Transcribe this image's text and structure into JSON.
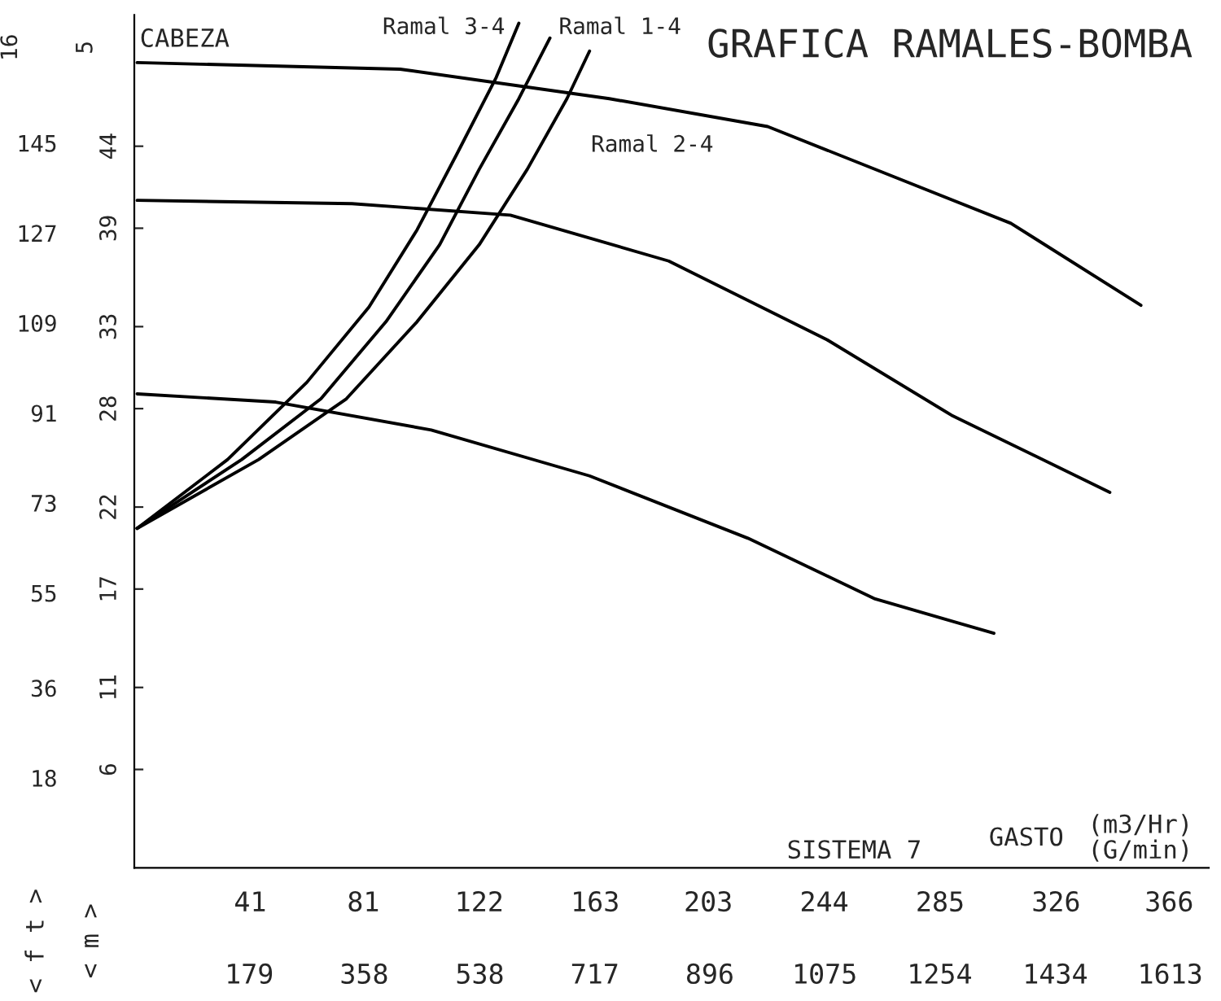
{
  "chart_data": {
    "type": "line",
    "title": "GRAFICA RAMALES-BOMBA",
    "xlabel": "(m3/Hr)",
    "x2label": "(G/min)",
    "ylabel": "< m >",
    "y2label": "< f t >",
    "annotations": [
      "CABEZA",
      "GASTO",
      "SISTEMA 7",
      "Ramal 3-4",
      "Ramal 1-4",
      "Ramal 2-4",
      "5",
      "16"
    ],
    "series": [
      {
        "color": "#000000",
        "x": [
          1,
          94,
          168,
          224,
          310,
          356
        ],
        "values": [
          49.1,
          48.7,
          46.9,
          45.2,
          39.3,
          34.3
        ]
      },
      {
        "color": "#000000",
        "x": [
          1,
          77,
          133,
          189,
          245,
          289,
          345
        ],
        "values": [
          40.7,
          40.5,
          39.8,
          37.0,
          32.2,
          27.6,
          22.9
        ]
      },
      {
        "color": "#000000",
        "x": [
          1,
          50,
          105,
          161,
          217,
          262,
          304
        ],
        "values": [
          28.9,
          28.4,
          26.7,
          23.9,
          20.1,
          16.4,
          14.3
        ]
      },
      {
        "color": "#000000",
        "x": [
          1,
          33,
          61,
          83,
          100,
          114,
          128,
          136
        ],
        "values": [
          20.7,
          24.9,
          29.6,
          34.2,
          38.9,
          43.5,
          48.2,
          51.5
        ]
      },
      {
        "color": "#000000",
        "x": [
          1,
          38,
          66,
          89,
          108,
          122,
          136,
          147
        ],
        "values": [
          20.7,
          24.9,
          28.6,
          33.3,
          38.0,
          42.6,
          46.9,
          50.6
        ]
      },
      {
        "color": "#000000",
        "x": [
          1,
          44,
          75,
          100,
          122,
          139,
          153,
          161
        ],
        "values": [
          20.7,
          24.9,
          28.6,
          33.3,
          38.0,
          42.6,
          46.9,
          49.8
        ]
      }
    ],
    "xlim": [
      0,
      380
    ],
    "xticks": [
      41,
      81,
      122,
      163,
      203,
      244,
      285,
      326,
      366
    ],
    "x2lim": [
      0,
      1673
    ],
    "x2ticks": [
      179,
      358,
      538,
      717,
      896,
      1075,
      1254,
      1434,
      1613
    ],
    "ylim": [
      0,
      52
    ],
    "yticks": [
      6,
      11,
      17,
      22,
      28,
      33,
      39,
      44
    ],
    "y2lim": [
      0,
      170.6
    ],
    "y2ticks": [
      18,
      36,
      55,
      73,
      91,
      109,
      127,
      145
    ],
    "grid": false,
    "legend": false,
    "marker": "none",
    "line_style": "solid"
  }
}
